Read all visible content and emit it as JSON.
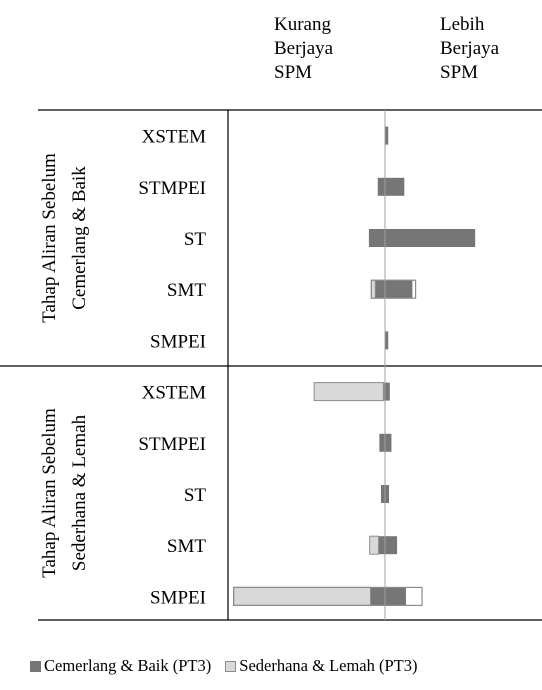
{
  "chart_data": {
    "type": "bar",
    "subtype": "diverging-horizontal-stacked",
    "header_left": [
      "Kurang",
      "Berjaya",
      "SPM"
    ],
    "header_right": [
      "Lebih",
      "Berjaya",
      "SPM"
    ],
    "groups": [
      {
        "label": [
          "Tahap Aliran Sebelum",
          "Cemerlang & Baik"
        ],
        "categories": [
          "XSTEM",
          "STMPEI",
          "ST",
          "SMT",
          "SMPEI"
        ]
      },
      {
        "label": [
          "Tahap Aliran Sebelum",
          "Sederhana & Lemah"
        ],
        "categories": [
          "XSTEM",
          "STMPEI",
          "ST",
          "SMT",
          "SMPEI"
        ]
      }
    ],
    "series": [
      {
        "name": "Cemerlang & Baik (PT3)",
        "color": "#767676",
        "ranges": [
          [
            [
              0.0,
              0.4
            ],
            [
              -0.9,
              2.4
            ],
            [
              -2.0,
              11.2
            ],
            [
              -1.2,
              3.4
            ],
            [
              0.0,
              0.4
            ]
          ],
          [
            [
              -0.2,
              0.6
            ],
            [
              -0.7,
              0.8
            ],
            [
              -0.5,
              0.5
            ],
            [
              -0.8,
              1.5
            ],
            [
              -1.8,
              2.6
            ]
          ]
        ]
      },
      {
        "name": "Sederhana & Lemah (PT3)",
        "color": "#d9d9d9",
        "ranges": [
          [
            [
              0.0,
              0.0
            ],
            [
              0.0,
              0.0
            ],
            [
              0.0,
              0.0
            ],
            [
              -1.7,
              -1.2
            ],
            [
              0.0,
              0.0
            ]
          ],
          [
            [
              -8.8,
              -0.2
            ],
            [
              0.0,
              0.0
            ],
            [
              0.0,
              0.0
            ],
            [
              -1.9,
              -0.8
            ],
            [
              -18.8,
              -1.8
            ]
          ]
        ]
      }
    ],
    "outlines": [
      [
        null,
        null,
        null,
        [
          -1.7,
          3.8
        ],
        null
      ],
      [
        null,
        null,
        null,
        null,
        [
          -18.8,
          4.6
        ]
      ]
    ],
    "xlim": [
      -19.5,
      19.5
    ],
    "zero_line": 0,
    "legend_position": "bottom",
    "grid": false
  }
}
